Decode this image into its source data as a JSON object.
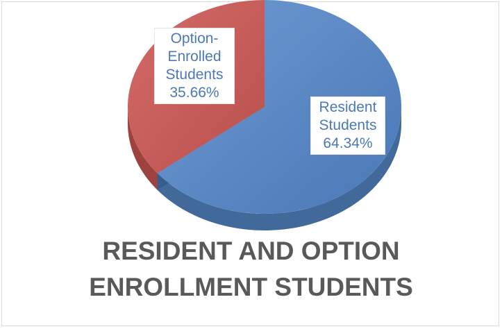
{
  "chart_data": {
    "type": "pie",
    "style": "3d",
    "title": [
      "RESIDENT AND OPTION",
      "ENROLLMENT STUDENTS"
    ],
    "slices": [
      {
        "name": "Resident Students",
        "value": 64.34,
        "label_lines": [
          "Resident",
          "Students",
          "64.34%"
        ],
        "color": "#4f81bd"
      },
      {
        "name": "Option-Enrolled Students",
        "value": 35.66,
        "label_lines": [
          "Option-",
          "Enrolled",
          "Students",
          "35.66%"
        ],
        "color": "#c0504d"
      }
    ],
    "legend": "none",
    "label_color": "#4a78b8",
    "title_color": "#595959"
  }
}
